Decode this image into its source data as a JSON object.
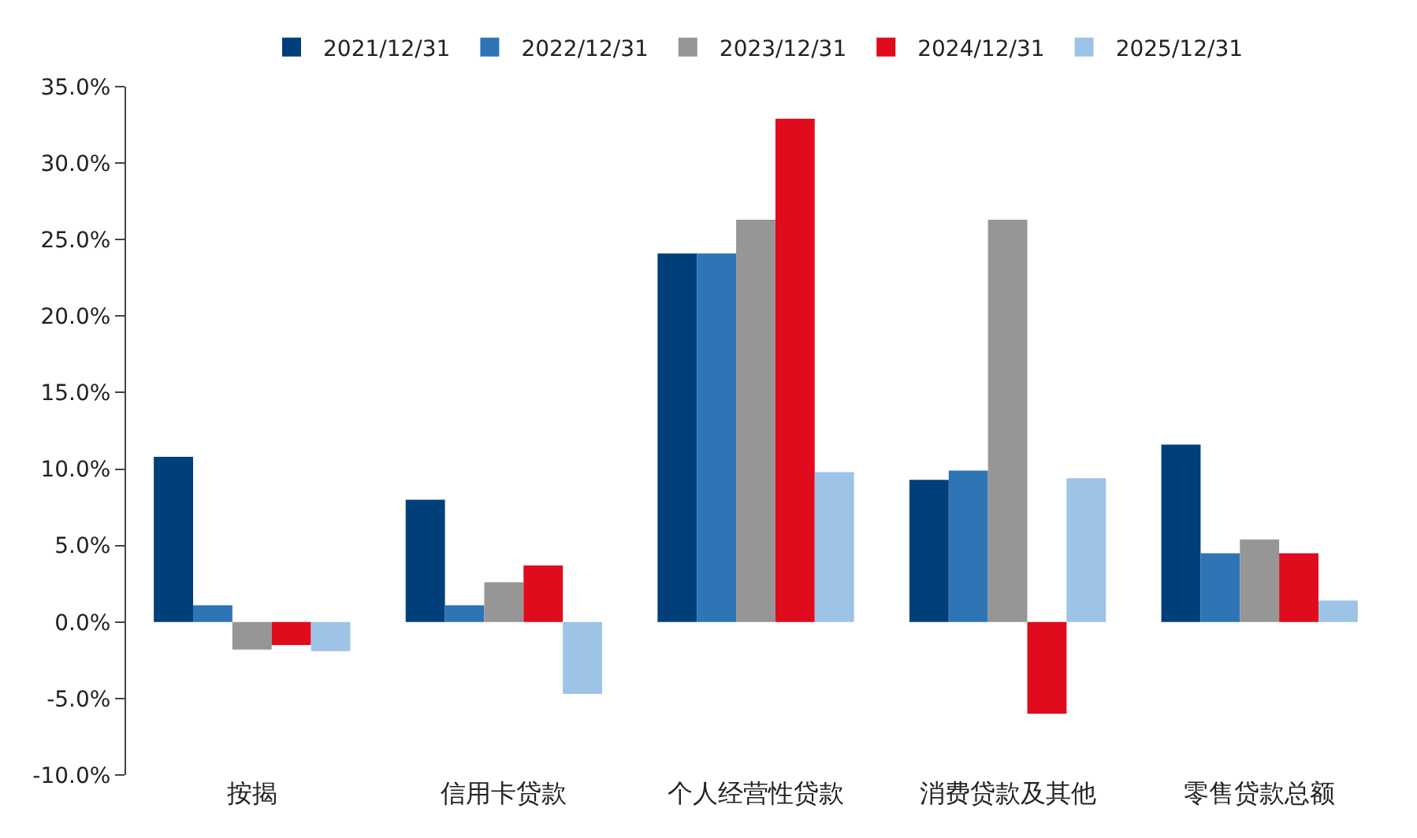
{
  "chart_data": {
    "type": "bar",
    "categories": [
      "按揭",
      "信用卡贷款",
      "个人经营性贷款",
      "消费贷款及其他",
      "零售贷款总额"
    ],
    "series": [
      {
        "name": "2021/12/31",
        "color": "#003f7a",
        "values": [
          10.8,
          8.0,
          24.1,
          9.3,
          11.6
        ]
      },
      {
        "name": "2022/12/31",
        "color": "#2e75b6",
        "values": [
          1.1,
          1.1,
          24.1,
          9.9,
          4.5
        ]
      },
      {
        "name": "2023/12/31",
        "color": "#969696",
        "values": [
          -1.8,
          2.6,
          26.3,
          26.3,
          5.4
        ]
      },
      {
        "name": "2024/12/31",
        "color": "#e00b1c",
        "values": [
          -1.5,
          3.7,
          32.9,
          -6.0,
          4.5
        ]
      },
      {
        "name": "2025/12/31",
        "color": "#9dc3e6",
        "values": [
          -1.9,
          -4.7,
          9.8,
          9.4,
          1.4
        ]
      }
    ],
    "ylim": [
      -10,
      35
    ],
    "yticks": [
      {
        "value": -10,
        "label": "-10.0%"
      },
      {
        "value": -5,
        "label": "-5.0%"
      },
      {
        "value": 0,
        "label": "0.0%"
      },
      {
        "value": 5,
        "label": "5.0%"
      },
      {
        "value": 10,
        "label": "10.0%"
      },
      {
        "value": 15,
        "label": "15.0%"
      },
      {
        "value": 20,
        "label": "20.0%"
      },
      {
        "value": 25,
        "label": "25.0%"
      },
      {
        "value": 30,
        "label": "30.0%"
      },
      {
        "value": 35,
        "label": "35.0%"
      }
    ],
    "grid": false,
    "legend": "top"
  }
}
